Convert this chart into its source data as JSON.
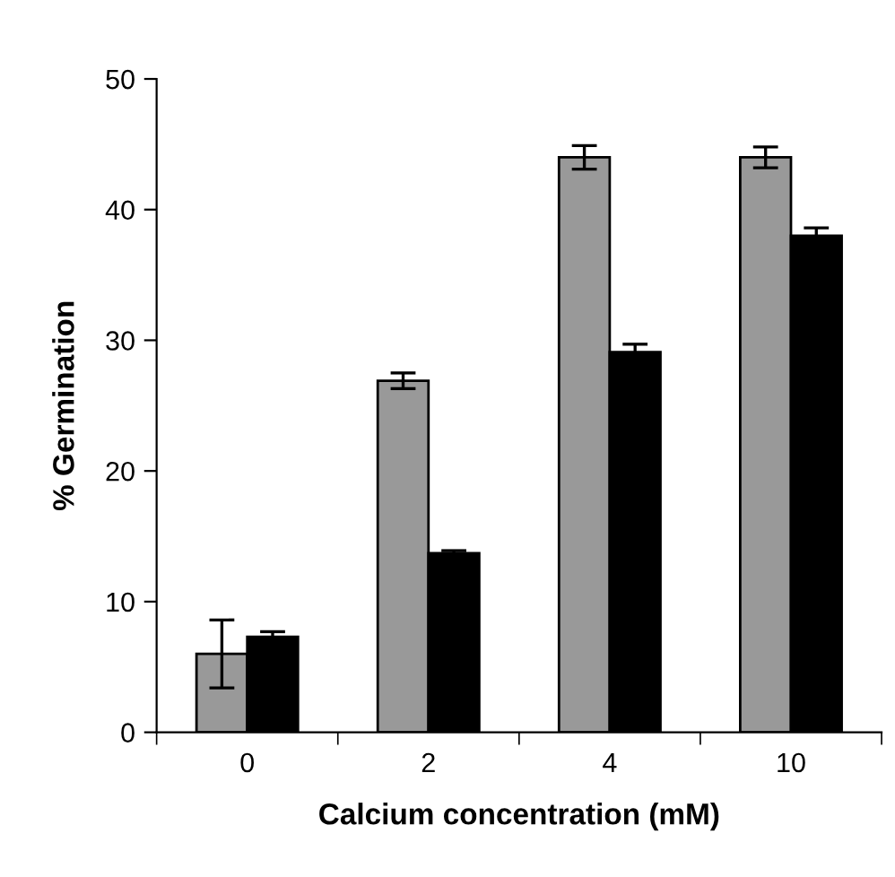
{
  "chart_data": {
    "type": "bar",
    "xlabel": "Calcium concentration (mM)",
    "ylabel": "% Germination",
    "categories": [
      "0",
      "2",
      "4",
      "10"
    ],
    "series": [
      {
        "color": "#999999",
        "values": [
          6.0,
          26.9,
          44.0,
          44.0
        ],
        "errors": [
          2.6,
          0.6,
          0.9,
          0.8
        ]
      },
      {
        "color": "#000000",
        "values": [
          7.3,
          13.7,
          29.1,
          38.0
        ],
        "errors": [
          0.4,
          0.2,
          0.6,
          0.6
        ]
      }
    ],
    "ylim": [
      0,
      50
    ],
    "yticks": [
      0,
      10,
      20,
      30,
      40,
      50
    ],
    "grid": false,
    "legend": false
  }
}
